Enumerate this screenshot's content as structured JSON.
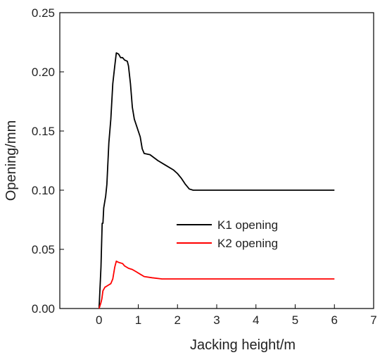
{
  "chart_data": {
    "type": "line",
    "title": "",
    "xlabel": "Jacking height/m",
    "ylabel": "Opening/mm",
    "xlim": [
      -1,
      7
    ],
    "ylim": [
      0,
      0.25
    ],
    "x_ticks": [
      "0",
      "1",
      "2",
      "3",
      "4",
      "5",
      "6",
      "7"
    ],
    "y_ticks": [
      "0.00",
      "0.05",
      "0.10",
      "0.15",
      "0.20",
      "0.25"
    ],
    "grid": false,
    "legend_position": "center",
    "series": [
      {
        "name": "K1 opening",
        "color": "#000000",
        "points": [
          [
            0,
            0
          ],
          [
            0.05,
            0.035
          ],
          [
            0.08,
            0.072
          ],
          [
            0.1,
            0.072
          ],
          [
            0.12,
            0.085
          ],
          [
            0.17,
            0.095
          ],
          [
            0.2,
            0.105
          ],
          [
            0.25,
            0.14
          ],
          [
            0.3,
            0.16
          ],
          [
            0.35,
            0.19
          ],
          [
            0.4,
            0.205
          ],
          [
            0.44,
            0.216
          ],
          [
            0.5,
            0.215
          ],
          [
            0.55,
            0.212
          ],
          [
            0.6,
            0.212
          ],
          [
            0.65,
            0.21
          ],
          [
            0.72,
            0.209
          ],
          [
            0.75,
            0.205
          ],
          [
            0.8,
            0.19
          ],
          [
            0.85,
            0.17
          ],
          [
            0.9,
            0.16
          ],
          [
            1.0,
            0.15
          ],
          [
            1.05,
            0.145
          ],
          [
            1.1,
            0.135
          ],
          [
            1.15,
            0.131
          ],
          [
            1.3,
            0.13
          ],
          [
            1.5,
            0.125
          ],
          [
            1.7,
            0.121
          ],
          [
            1.9,
            0.117
          ],
          [
            2.0,
            0.114
          ],
          [
            2.1,
            0.11
          ],
          [
            2.2,
            0.105
          ],
          [
            2.3,
            0.101
          ],
          [
            2.4,
            0.1
          ],
          [
            2.5,
            0.1
          ],
          [
            6.0,
            0.1
          ]
        ]
      },
      {
        "name": "K2 opening",
        "color": "#ff0000",
        "points": [
          [
            0,
            0
          ],
          [
            0.02,
            0.002
          ],
          [
            0.05,
            0.005
          ],
          [
            0.07,
            0.008
          ],
          [
            0.1,
            0.015
          ],
          [
            0.15,
            0.018
          ],
          [
            0.2,
            0.019
          ],
          [
            0.25,
            0.02
          ],
          [
            0.3,
            0.021
          ],
          [
            0.35,
            0.025
          ],
          [
            0.4,
            0.035
          ],
          [
            0.44,
            0.04
          ],
          [
            0.5,
            0.039
          ],
          [
            0.6,
            0.038
          ],
          [
            0.65,
            0.036
          ],
          [
            0.75,
            0.034
          ],
          [
            0.85,
            0.033
          ],
          [
            0.95,
            0.031
          ],
          [
            1.05,
            0.029
          ],
          [
            1.15,
            0.027
          ],
          [
            1.35,
            0.026
          ],
          [
            1.6,
            0.025
          ],
          [
            2.0,
            0.025
          ],
          [
            6.0,
            0.025
          ]
        ]
      }
    ]
  }
}
